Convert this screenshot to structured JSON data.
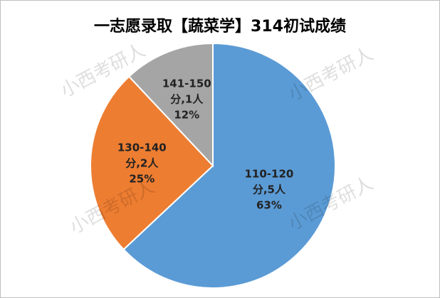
{
  "chart_data": {
    "type": "pie",
    "title": "一志愿录取【蔬菜学】314初试成绩",
    "categories": [
      [
        "110-120",
        "分,5人"
      ],
      [
        "130-140",
        "分,2人"
      ],
      [
        "141-150",
        "分,1人"
      ]
    ],
    "values": [
      63,
      25,
      12
    ],
    "value_labels": [
      "63%",
      "25%",
      "12%"
    ],
    "colors": [
      "#5b9bd5",
      "#ed7d31",
      "#a5a5a5"
    ],
    "watermark": "小西考研人"
  }
}
